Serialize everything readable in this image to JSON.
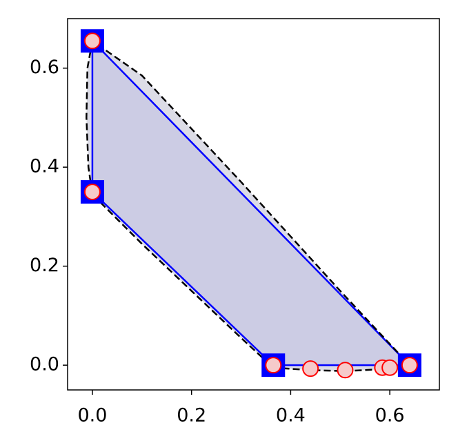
{
  "chart_data": {
    "type": "scatter",
    "xlim": [
      -0.05,
      0.7
    ],
    "ylim": [
      -0.05,
      0.7
    ],
    "xticks": [
      {
        "value": 0,
        "label": "0.0"
      },
      0.2,
      0.4,
      0.6
    ],
    "yticks": [
      {
        "value": 0,
        "label": "0.0"
      },
      0.2,
      0.4,
      0.6
    ],
    "series": [
      {
        "kind": "area",
        "color": "#dcdce6",
        "x": [
          0.0,
          -0.01,
          -0.012,
          -0.008,
          0.0,
          0.1,
          0.2,
          0.3,
          0.365,
          0.44,
          0.51,
          0.585,
          0.64,
          0.5,
          0.3,
          0.1,
          0.0
        ],
        "y": [
          0.655,
          0.6,
          0.5,
          0.4,
          0.345,
          0.245,
          0.15,
          0.055,
          -0.005,
          -0.01,
          -0.012,
          -0.008,
          0.0,
          0.15,
          0.37,
          0.585,
          0.655
        ]
      },
      {
        "kind": "polygon",
        "color": "#0000ff",
        "fill": "#cccce4",
        "x": [
          0.0,
          0.0,
          0.365,
          0.64,
          0.0
        ],
        "y": [
          0.655,
          0.35,
          0.0,
          0.0,
          0.655
        ]
      },
      {
        "kind": "dashed-line",
        "color": "#000000",
        "x": [
          0.0,
          -0.01,
          -0.012,
          -0.008,
          0.0,
          0.1,
          0.2,
          0.3,
          0.365,
          0.44,
          0.51,
          0.585,
          0.64,
          0.5,
          0.3,
          0.1,
          0.0
        ],
        "y": [
          0.655,
          0.6,
          0.5,
          0.4,
          0.345,
          0.245,
          0.15,
          0.055,
          -0.005,
          -0.01,
          -0.012,
          -0.008,
          0.0,
          0.15,
          0.37,
          0.585,
          0.655
        ]
      },
      {
        "kind": "square",
        "color": "#0000ff",
        "x": [
          0.0,
          0.0,
          0.365,
          0.64
        ],
        "y": [
          0.655,
          0.35,
          0.0,
          0.0
        ]
      },
      {
        "kind": "circle",
        "color": "#ff0000",
        "fill": "#f6caca",
        "x": [
          0.0,
          0.0,
          0.365,
          0.44,
          0.51,
          0.585,
          0.6,
          0.64
        ],
        "y": [
          0.655,
          0.35,
          0.0,
          -0.007,
          -0.01,
          -0.005,
          -0.005,
          0.0
        ]
      }
    ]
  }
}
